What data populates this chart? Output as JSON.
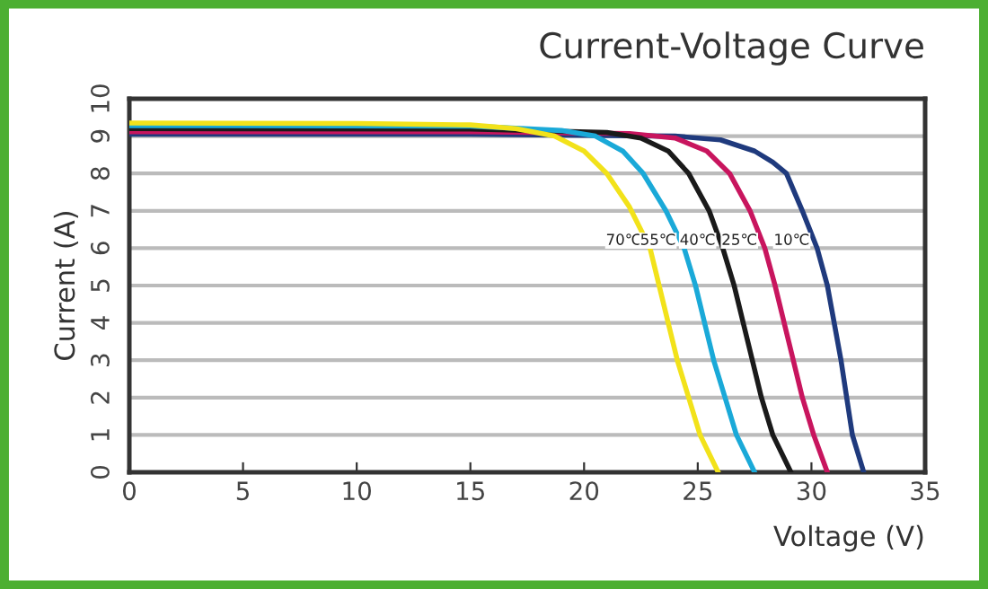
{
  "chart_data": {
    "type": "line",
    "title": "Current-Voltage Curve",
    "xlabel": "Voltage (V)",
    "ylabel": "Current (A)",
    "xlim": [
      0,
      35
    ],
    "xticks": [
      0,
      5,
      10,
      15,
      20,
      25,
      30,
      35
    ],
    "ylim": [
      0,
      10
    ],
    "yticks": [
      0,
      1,
      2,
      3,
      4,
      5,
      6,
      7,
      8,
      9,
      10
    ],
    "grid": "y",
    "legend": false,
    "marker": "none",
    "line_style": "solid",
    "series": [
      {
        "name": "70℃",
        "color": "#f2e21a",
        "x": [
          0,
          10,
          15,
          17,
          18.7,
          20,
          21,
          22,
          22.9,
          23.3,
          23.7,
          24.1,
          24.6,
          25.1,
          25.9
        ],
        "values": [
          9.35,
          9.34,
          9.3,
          9.2,
          9.0,
          8.6,
          8.0,
          7.1,
          6.0,
          5.0,
          4.0,
          3.0,
          2.0,
          1.0,
          0
        ]
      },
      {
        "name": "55℃",
        "color": "#1aa9d8",
        "x": [
          0,
          15,
          19,
          20.5,
          21.7,
          22.6,
          23.6,
          24.4,
          24.9,
          25.3,
          25.7,
          26.2,
          26.7,
          27.5
        ],
        "values": [
          9.28,
          9.27,
          9.15,
          9.0,
          8.6,
          8.0,
          7.0,
          6.0,
          5.0,
          4.0,
          3.0,
          2.0,
          1.0,
          0
        ]
      },
      {
        "name": "40℃",
        "color": "#1a1a1a",
        "x": [
          0,
          15,
          21,
          22.5,
          23.7,
          24.6,
          25.5,
          26.1,
          26.6,
          27.0,
          27.4,
          27.8,
          28.3,
          29.1
        ],
        "values": [
          9.2,
          9.19,
          9.1,
          8.95,
          8.6,
          8.0,
          7.0,
          6.0,
          5.0,
          4.0,
          3.0,
          2.0,
          1.0,
          0
        ]
      },
      {
        "name": "25℃",
        "color": "#c8155e",
        "x": [
          0,
          15,
          22,
          24,
          25.4,
          26.4,
          27.3,
          27.95,
          28.4,
          28.8,
          29.2,
          29.6,
          30.1,
          30.7
        ],
        "values": [
          9.12,
          9.12,
          9.07,
          8.95,
          8.6,
          8.0,
          7.0,
          6.0,
          5.0,
          4.0,
          3.0,
          2.0,
          1.0,
          0
        ]
      },
      {
        "name": "10℃",
        "color": "#1f3a7d",
        "x": [
          0,
          15,
          24,
          26,
          27.5,
          28.3,
          28.9,
          29.6,
          30.25,
          30.7,
          31.0,
          31.3,
          31.55,
          31.8,
          32.3
        ],
        "values": [
          9.05,
          9.05,
          9.0,
          8.9,
          8.6,
          8.3,
          8.0,
          7.0,
          6.0,
          5.0,
          4.0,
          3.0,
          2.0,
          1.0,
          0
        ]
      }
    ]
  }
}
